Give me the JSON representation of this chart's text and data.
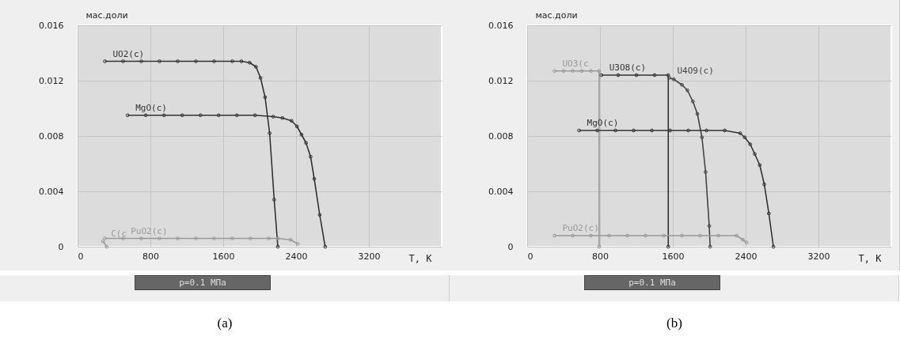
{
  "chart_data": [
    {
      "type": "line",
      "title": "(a)",
      "xlabel": "T, K",
      "ylabel": "мас.доли",
      "xlim": [
        0,
        4000
      ],
      "ylim": [
        0,
        0.016
      ],
      "xticks": [
        0,
        800,
        1600,
        2400,
        3200
      ],
      "yticks": [
        0,
        0.004,
        0.008,
        0.012,
        0.016
      ],
      "grid": true,
      "marker": "circle",
      "annotations": [
        "p=0.1 МПа"
      ],
      "series": [
        {
          "name": "UO2(c)",
          "color": "#333333",
          "x": [
            300,
            500,
            700,
            900,
            1100,
            1300,
            1500,
            1700,
            1800,
            1890,
            1960,
            2010,
            2060,
            2110,
            2160,
            2200
          ],
          "values": [
            0.0134,
            0.0134,
            0.0134,
            0.0134,
            0.0134,
            0.0134,
            0.0134,
            0.0134,
            0.0134,
            0.0133,
            0.013,
            0.0122,
            0.0108,
            0.0082,
            0.0034,
            0
          ]
        },
        {
          "name": "MgO(c)",
          "color": "#333333",
          "x": [
            550,
            750,
            950,
            1150,
            1350,
            1550,
            1750,
            1950,
            2150,
            2250,
            2350,
            2410,
            2460,
            2510,
            2560,
            2600,
            2660,
            2720
          ],
          "values": [
            0.0095,
            0.0095,
            0.0095,
            0.0095,
            0.0095,
            0.0095,
            0.0095,
            0.0095,
            0.0094,
            0.0093,
            0.0091,
            0.0087,
            0.0081,
            0.0075,
            0.0065,
            0.0049,
            0.0023,
            0
          ]
        },
        {
          "name": "C(c",
          "color": "#999999",
          "x": [
            280,
            320
          ],
          "values": [
            0.0004,
            0
          ]
        },
        {
          "name": "PuO2(c)",
          "color": "#999999",
          "x": [
            300,
            500,
            700,
            900,
            1100,
            1300,
            1500,
            1700,
            1900,
            2100,
            2200,
            2340,
            2420
          ],
          "values": [
            0.0006,
            0.0006,
            0.0006,
            0.0006,
            0.0006,
            0.0006,
            0.0006,
            0.0006,
            0.0006,
            0.0006,
            0.0006,
            0.0005,
            0.0002
          ]
        }
      ]
    },
    {
      "type": "line",
      "title": "(b)",
      "xlabel": "T, K",
      "ylabel": "мас.доли",
      "xlim": [
        0,
        4000
      ],
      "ylim": [
        0,
        0.016
      ],
      "xticks": [
        0,
        800,
        1600,
        2400,
        3200
      ],
      "yticks": [
        0,
        0.004,
        0.008,
        0.012,
        0.016
      ],
      "grid": true,
      "marker": "circle",
      "annotations": [
        "p=0.1 МПа"
      ],
      "series": [
        {
          "name": "UO3(c",
          "color": "#999999",
          "x": [
            300,
            400,
            500,
            600,
            700,
            790,
            790
          ],
          "values": [
            0.0127,
            0.0127,
            0.0127,
            0.0127,
            0.0127,
            0.0127,
            0
          ]
        },
        {
          "name": "U3O8(c)",
          "color": "#333333",
          "x": [
            815,
            1000,
            1200,
            1400,
            1550,
            1550
          ],
          "values": [
            0.0124,
            0.0124,
            0.0124,
            0.0124,
            0.0124,
            0
          ]
        },
        {
          "name": "U4O9(c)",
          "color": "#444444",
          "x": [
            1560,
            1610,
            1700,
            1760,
            1820,
            1870,
            1920,
            1960,
            2000,
            2010
          ],
          "values": [
            0.0122,
            0.0121,
            0.0117,
            0.0113,
            0.0105,
            0.0096,
            0.0079,
            0.0054,
            0.0015,
            0
          ]
        },
        {
          "name": "MgO(c)",
          "color": "#333333",
          "x": [
            570,
            770,
            970,
            1170,
            1370,
            1570,
            1770,
            1970,
            2170,
            2340,
            2390,
            2450,
            2500,
            2555,
            2605,
            2655,
            2705
          ],
          "values": [
            0.0084,
            0.0084,
            0.0084,
            0.0084,
            0.0084,
            0.0084,
            0.0084,
            0.0084,
            0.0084,
            0.0082,
            0.0079,
            0.0074,
            0.0067,
            0.0059,
            0.0045,
            0.0024,
            0
          ]
        },
        {
          "name": "PuO2(c)",
          "color": "#999999",
          "x": [
            300,
            500,
            700,
            900,
            1100,
            1300,
            1500,
            1700,
            1900,
            2100,
            2300,
            2370,
            2410
          ],
          "values": [
            0.0008,
            0.0008,
            0.0008,
            0.0008,
            0.0008,
            0.0008,
            0.0008,
            0.0008,
            0.0008,
            0.0008,
            0.0008,
            0.0005,
            0.0003
          ]
        }
      ]
    }
  ]
}
